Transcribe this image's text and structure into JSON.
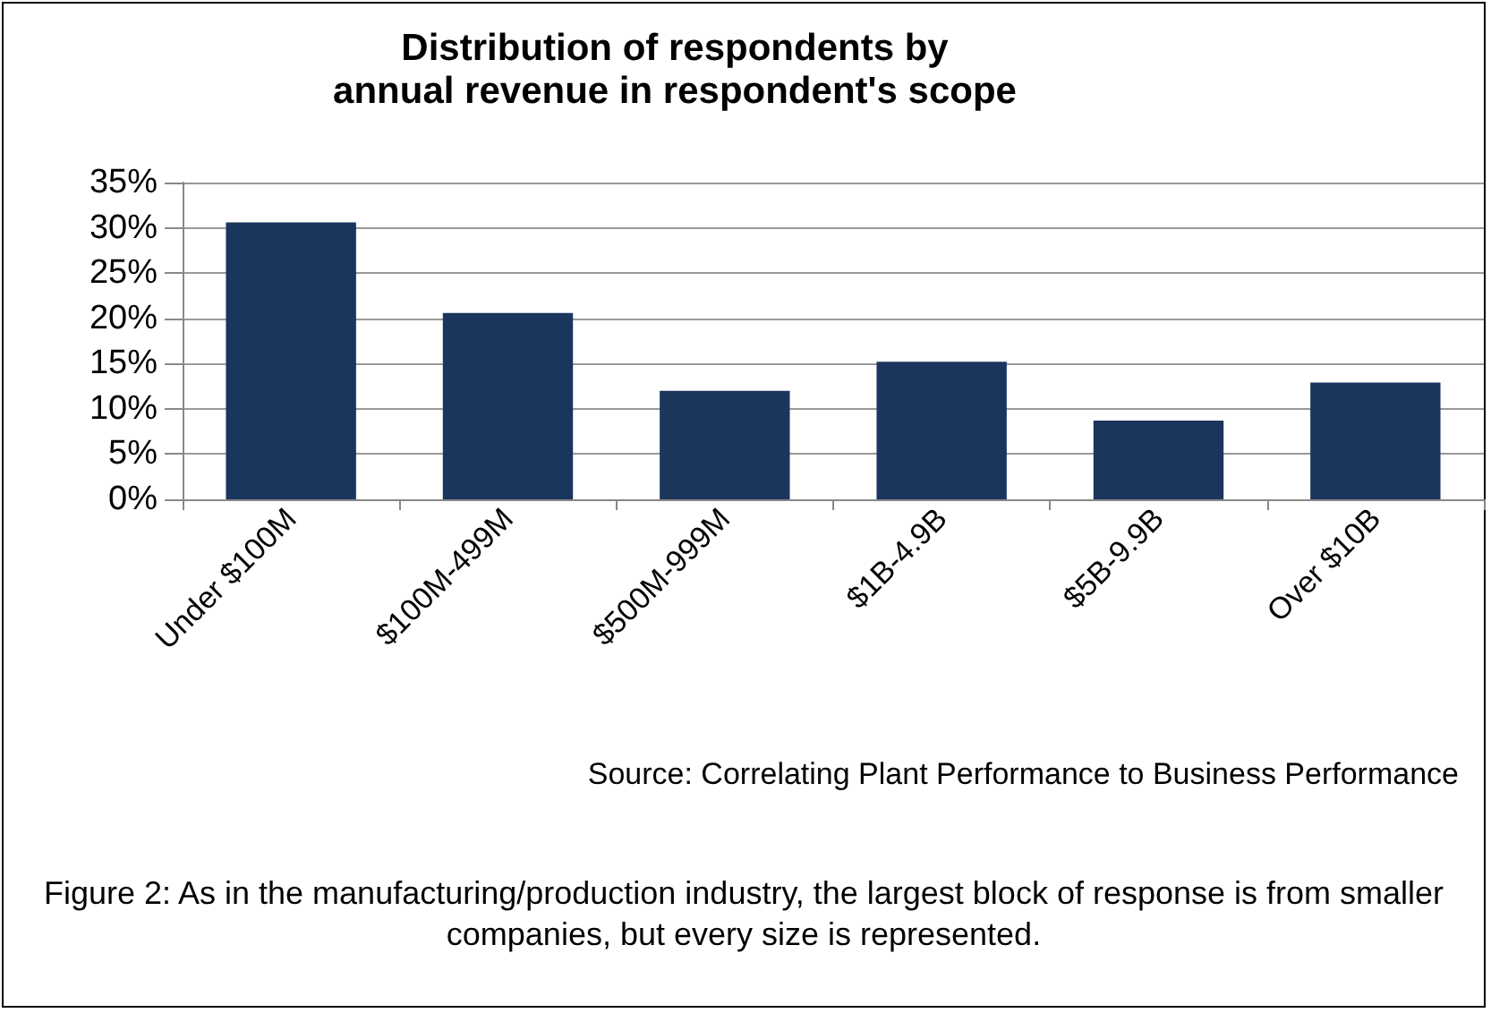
{
  "chart_data": {
    "type": "bar",
    "title": "Distribution of respondents by\nannual revenue in respondent's scope",
    "categories": [
      "Under $100M",
      "$100M-499M",
      "$500M-999M",
      "$1B-4.9B",
      "$5B-9.9B",
      "Over $10B"
    ],
    "values": [
      30.6,
      20.6,
      12.0,
      15.2,
      8.7,
      12.9
    ],
    "color": "#1b365d",
    "ylim": [
      0,
      35
    ],
    "yticks": [
      {
        "value": 0,
        "label": "0%"
      },
      {
        "value": 5,
        "label": "5%"
      },
      {
        "value": 10,
        "label": "10%"
      },
      {
        "value": 15,
        "label": "15%"
      },
      {
        "value": 20,
        "label": "20%"
      },
      {
        "value": 25,
        "label": "25%"
      },
      {
        "value": 30,
        "label": "30%"
      },
      {
        "value": 35,
        "label": "35%"
      }
    ],
    "grid": "y",
    "annotations": [
      "Source: Correlating Plant Performance to Business Performance",
      "Figure 2: As in the manufacturing/production industry, the largest block of response is from smaller companies, but every size is represented."
    ]
  }
}
